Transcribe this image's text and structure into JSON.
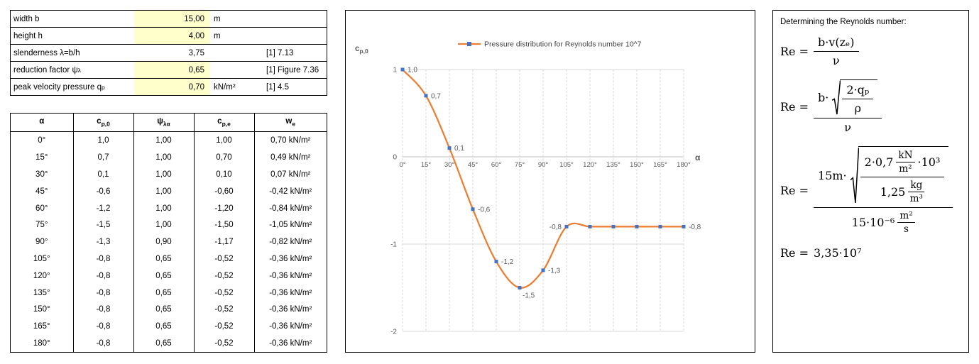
{
  "params": {
    "rows": [
      {
        "label": "width b",
        "sub": "",
        "value": "15,00",
        "unit": "m",
        "ref": "",
        "input": true
      },
      {
        "label": "height h",
        "sub": "",
        "value": "4,00",
        "unit": "m",
        "ref": "",
        "input": true
      },
      {
        "label": "slenderness λ=b/h",
        "sub": "",
        "value": "3,75",
        "unit": "",
        "ref": "[1] 7.13",
        "input": false
      },
      {
        "label": "reduction factor ψ",
        "sub": "λ",
        "value": "0,65",
        "unit": "",
        "ref": "[1] Figure 7.36",
        "input": true
      },
      {
        "label": "peak velocity pressure q",
        "sub": "p",
        "value": "0,70",
        "unit": "kN/m²",
        "ref": "[1] 4.5",
        "input": true
      }
    ]
  },
  "table": {
    "headers": [
      {
        "base": "α",
        "sub": ""
      },
      {
        "base": "c",
        "sub": "p,0"
      },
      {
        "base": "ψ",
        "sub": "λα"
      },
      {
        "base": "c",
        "sub": "p,e"
      },
      {
        "base": "w",
        "sub": "e"
      }
    ],
    "rows": [
      [
        "0°",
        "1,0",
        "1,00",
        "1,00",
        "0,70 kN/m²"
      ],
      [
        "15°",
        "0,7",
        "1,00",
        "0,70",
        "0,49 kN/m²"
      ],
      [
        "30°",
        "0,1",
        "1,00",
        "0,10",
        "0,07 kN/m²"
      ],
      [
        "45°",
        "-0,6",
        "1,00",
        "-0,60",
        "-0,42 kN/m²"
      ],
      [
        "60°",
        "-1,2",
        "1,00",
        "-1,20",
        "-0,84 kN/m²"
      ],
      [
        "75°",
        "-1,5",
        "1,00",
        "-1,50",
        "-1,05 kN/m²"
      ],
      [
        "90°",
        "-1,3",
        "0,90",
        "-1,17",
        "-0,82 kN/m²"
      ],
      [
        "105°",
        "-0,8",
        "0,65",
        "-0,52",
        "-0,36 kN/m²"
      ],
      [
        "120°",
        "-0,8",
        "0,65",
        "-0,52",
        "-0,36 kN/m²"
      ],
      [
        "135°",
        "-0,8",
        "0,65",
        "-0,52",
        "-0,36 kN/m²"
      ],
      [
        "150°",
        "-0,8",
        "0,65",
        "-0,52",
        "-0,36 kN/m²"
      ],
      [
        "165°",
        "-0,8",
        "0,65",
        "-0,52",
        "-0,36 kN/m²"
      ],
      [
        "180°",
        "-0,8",
        "0,65",
        "-0,52",
        "-0,36 kN/m²"
      ]
    ]
  },
  "chart_data": {
    "type": "line",
    "legend": "Pressure distribution for Reynolds number 10^7",
    "x": [
      0,
      15,
      30,
      45,
      60,
      75,
      90,
      105,
      120,
      135,
      150,
      165,
      180
    ],
    "categories": [
      "0°",
      "15°",
      "30°",
      "45°",
      "60°",
      "75°",
      "90°",
      "105°",
      "120°",
      "135°",
      "150°",
      "165°",
      "180°"
    ],
    "values": [
      1.0,
      0.7,
      0.1,
      -0.6,
      -1.2,
      -1.5,
      -1.3,
      -0.8,
      -0.8,
      -0.8,
      -0.8,
      -0.8,
      -0.8
    ],
    "point_labels": [
      "1,0",
      "0,7",
      "0,1",
      "-0,6",
      "-1,2",
      "-1,5",
      "-1,3",
      "-0,8",
      null,
      null,
      null,
      null,
      "-0,8"
    ],
    "label_side": [
      "r",
      "r",
      "r",
      "r",
      "r",
      "br",
      "r",
      "l",
      null,
      null,
      null,
      null,
      "r"
    ],
    "xlabel": "α",
    "ylabel_base": "c",
    "ylabel_sub": "p,0",
    "ylim": [
      -2,
      1
    ],
    "yticks": [
      1,
      0,
      -1,
      -2
    ],
    "smooth": true,
    "grid": "dashed-vertical",
    "line_color": "#ED7D31",
    "marker_color": "#4472C4"
  },
  "formulas": {
    "heading": "Determining the Reynolds number:",
    "f1": {
      "lhs": "Re =",
      "num": "b·v(zₑ)",
      "den": "ν"
    },
    "f2": {
      "lhs": "Re =",
      "num_prefix": "b·",
      "rad_num": "2·qₚ",
      "rad_den": "ρ",
      "den": "ν"
    },
    "f3": {
      "lhs": "Re =",
      "num_prefix": "15m·",
      "rad_num_a": "2·0,7",
      "rad_num_unit_top": "kN",
      "rad_num_unit_bot": "m²",
      "rad_num_b": "·10³",
      "rad_den_a": "1,25",
      "rad_den_unit_top": "kg",
      "rad_den_unit_bot": "m³",
      "den_a": "15·10⁻⁶",
      "den_unit_top": "m²",
      "den_unit_bot": "s"
    },
    "f4": {
      "lhs": "Re =",
      "rhs": "3,35·10⁷"
    }
  }
}
